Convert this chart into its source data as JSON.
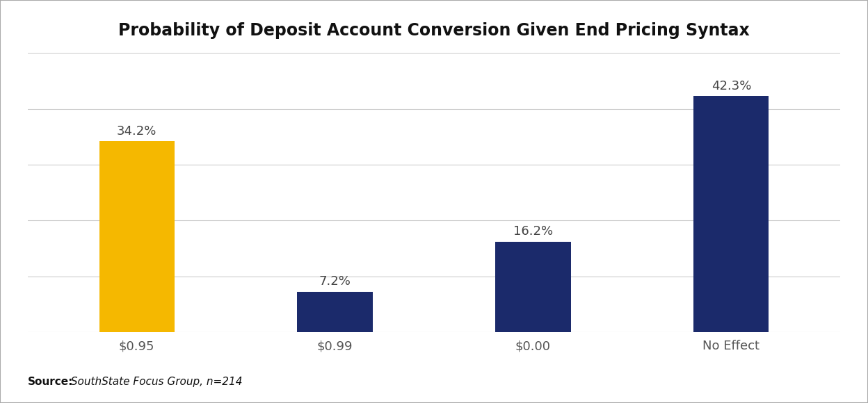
{
  "title": "Probability of Deposit Account Conversion Given End Pricing Syntax",
  "categories": [
    "$0.95",
    "$0.99",
    "$0.00",
    "No Effect"
  ],
  "values": [
    34.2,
    7.2,
    16.2,
    42.3
  ],
  "labels": [
    "34.2%",
    "7.2%",
    "16.2%",
    "42.3%"
  ],
  "bar_colors": [
    "#F5B800",
    "#1B2A6B",
    "#1B2A6B",
    "#1B2A6B"
  ],
  "background_color": "#FFFFFF",
  "axes_background": "#FFFFFF",
  "ylim": [
    0,
    50
  ],
  "title_fontsize": 17,
  "label_fontsize": 13,
  "tick_fontsize": 13,
  "source_bold": "Source:",
  "source_italic": " SouthState Focus Group, n=214",
  "grid_color": "#CCCCCC",
  "bar_width": 0.38,
  "xlim_left": -0.55,
  "xlim_right": 3.55
}
